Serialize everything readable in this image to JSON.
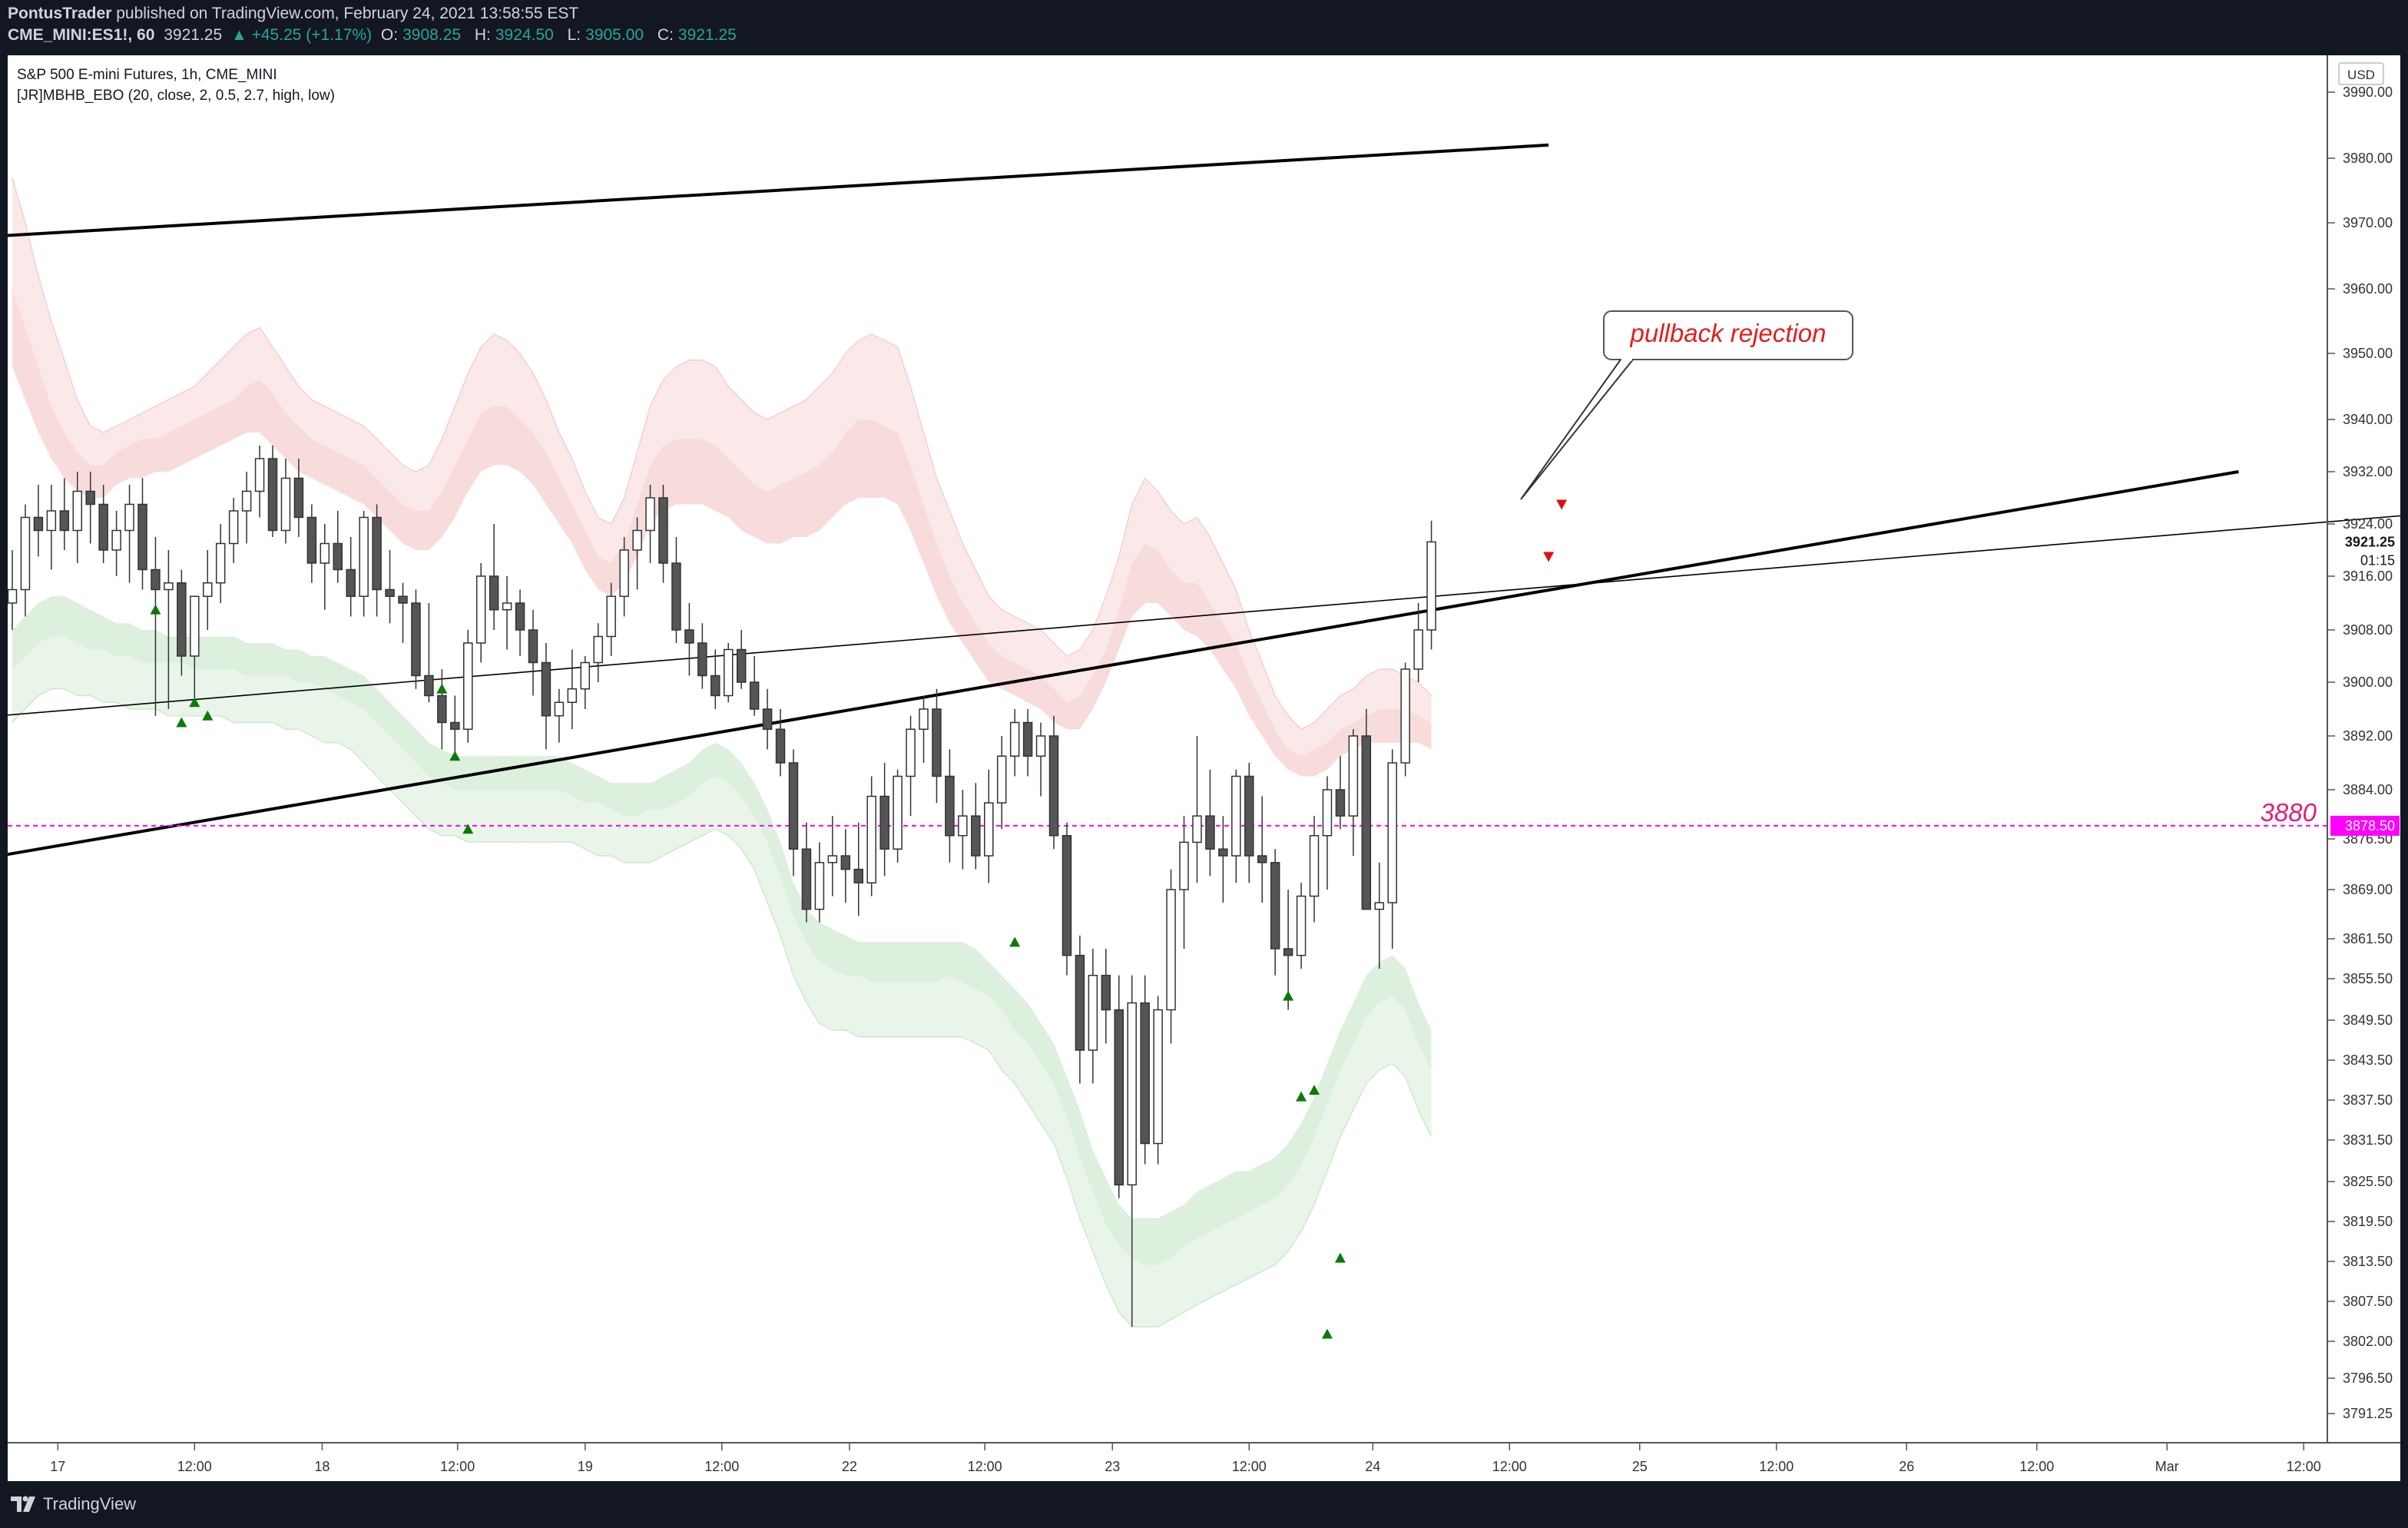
{
  "header": {
    "publisher": "PontusTrader",
    "published_text": "published on TradingView.com, February 24, 2021 13:58:55 EST",
    "symbol": "CME_MINI:ES1!, 60",
    "last": "3921.25",
    "change": "▲ +45.25 (+1.17%)",
    "o_label": "O:",
    "o_value": "3908.25",
    "h_label": "H:",
    "h_value": "3924.50",
    "l_label": "L:",
    "l_value": "3905.00",
    "c_label": "C:",
    "c_value": "3921.25"
  },
  "legend": {
    "title": "S&P 500 E-mini Futures, 1h, CME_MINI",
    "indicator": "[JR]MBHB_EBO (20, close, 2, 0.5, 2.7, high, low)"
  },
  "footer": {
    "brand": "TradingView"
  },
  "colors": {
    "up_body": "#ffffff",
    "down_body": "#555555",
    "candle_border": "#333333",
    "upper_band": "#f6cfcf",
    "lower_band": "#cfe8cf",
    "signal_up": "#0a7a0a",
    "signal_down": "#e01010",
    "hline": "#ff00ff",
    "annotation": "#e02020"
  },
  "chart_data": {
    "type": "candlestick",
    "currency": "USD",
    "y_tick_labels": [
      "3990.00",
      "3980.00",
      "3970.00",
      "3960.00",
      "3950.00",
      "3940.00",
      "3932.00",
      "3924.00",
      "3916.00",
      "3908.00",
      "3900.00",
      "3892.00",
      "3884.00",
      "3876.50",
      "3869.00",
      "3861.50",
      "3855.50",
      "3849.50",
      "3843.50",
      "3837.50",
      "3831.50",
      "3825.50",
      "3819.50",
      "3813.50",
      "3807.50",
      "3802.00",
      "3796.50",
      "3791.25"
    ],
    "x_tick_labels": [
      "17",
      "12:00",
      "18",
      "12:00",
      "19",
      "12:00",
      "22",
      "12:00",
      "23",
      "12:00",
      "24",
      "12:00",
      "25",
      "12:00",
      "26",
      "12:00",
      "Mar",
      "12:00"
    ],
    "price_label": "3921.25",
    "countdown_label": "01:15",
    "hline_label": "3878.50",
    "hline_value": 3878.5,
    "level_text": "3880",
    "annotation_text": "pullback rejection",
    "candles": [
      [
        3912,
        3920,
        3908,
        3914
      ],
      [
        3914,
        3927,
        3910,
        3925
      ],
      [
        3925,
        3930,
        3919,
        3923
      ],
      [
        3923,
        3930,
        3917,
        3926
      ],
      [
        3926,
        3931,
        3920,
        3923
      ],
      [
        3923,
        3932,
        3918,
        3929
      ],
      [
        3929,
        3932,
        3921,
        3927
      ],
      [
        3927,
        3930,
        3918,
        3920
      ],
      [
        3920,
        3926,
        3916,
        3923
      ],
      [
        3923,
        3930,
        3915,
        3927
      ],
      [
        3927,
        3931,
        3914,
        3917
      ],
      [
        3917,
        3922,
        3895,
        3914
      ],
      [
        3914,
        3920,
        3896,
        3915
      ],
      [
        3915,
        3917,
        3901,
        3904
      ],
      [
        3904,
        3913,
        3897,
        3913
      ],
      [
        3913,
        3920,
        3908,
        3915
      ],
      [
        3915,
        3924,
        3912,
        3921
      ],
      [
        3921,
        3928,
        3918,
        3926
      ],
      [
        3926,
        3932,
        3921,
        3929
      ],
      [
        3929,
        3936,
        3925,
        3934
      ],
      [
        3934,
        3936,
        3922,
        3923
      ],
      [
        3923,
        3934,
        3921,
        3931
      ],
      [
        3931,
        3934,
        3922,
        3925
      ],
      [
        3925,
        3927,
        3915,
        3918
      ],
      [
        3918,
        3924,
        3911,
        3921
      ],
      [
        3921,
        3926,
        3915,
        3917
      ],
      [
        3917,
        3922,
        3910,
        3913
      ],
      [
        3913,
        3926,
        3910,
        3925
      ],
      [
        3925,
        3927,
        3910,
        3914
      ],
      [
        3914,
        3920,
        3909,
        3913
      ],
      [
        3913,
        3915,
        3906,
        3912
      ],
      [
        3912,
        3914,
        3899,
        3901
      ],
      [
        3901,
        3912,
        3897,
        3898
      ],
      [
        3898,
        3902,
        3890,
        3894
      ],
      [
        3894,
        3898,
        3889,
        3893
      ],
      [
        3893,
        3908,
        3891,
        3906
      ],
      [
        3906,
        3918,
        3903,
        3916
      ],
      [
        3916,
        3924,
        3908,
        3911
      ],
      [
        3911,
        3916,
        3905,
        3912
      ],
      [
        3912,
        3914,
        3904,
        3908
      ],
      [
        3908,
        3911,
        3898,
        3903
      ],
      [
        3903,
        3906,
        3890,
        3895
      ],
      [
        3895,
        3899,
        3891,
        3897
      ],
      [
        3897,
        3905,
        3893,
        3899
      ],
      [
        3899,
        3904,
        3896,
        3903
      ],
      [
        3903,
        3909,
        3900,
        3907
      ],
      [
        3907,
        3915,
        3904,
        3913
      ],
      [
        3913,
        3922,
        3910,
        3920
      ],
      [
        3920,
        3925,
        3914,
        3923
      ],
      [
        3923,
        3930,
        3918,
        3928
      ],
      [
        3928,
        3930,
        3915,
        3918
      ],
      [
        3918,
        3922,
        3906,
        3908
      ],
      [
        3908,
        3912,
        3901,
        3906
      ],
      [
        3906,
        3909,
        3899,
        3901
      ],
      [
        3901,
        3905,
        3896,
        3898
      ],
      [
        3898,
        3906,
        3897,
        3905
      ],
      [
        3905,
        3908,
        3899,
        3900
      ],
      [
        3900,
        3904,
        3895,
        3896
      ],
      [
        3896,
        3899,
        3890,
        3893
      ],
      [
        3893,
        3896,
        3886,
        3888
      ],
      [
        3888,
        3890,
        3871,
        3875
      ],
      [
        3875,
        3879,
        3864,
        3866
      ],
      [
        3866,
        3876,
        3864,
        3873
      ],
      [
        3873,
        3880,
        3868,
        3874
      ],
      [
        3874,
        3878,
        3867,
        3872
      ],
      [
        3872,
        3879,
        3865,
        3870
      ],
      [
        3870,
        3886,
        3868,
        3883
      ],
      [
        3883,
        3888,
        3871,
        3875
      ],
      [
        3875,
        3887,
        3873,
        3886
      ],
      [
        3886,
        3895,
        3880,
        3893
      ],
      [
        3893,
        3898,
        3888,
        3896
      ],
      [
        3896,
        3899,
        3882,
        3886
      ],
      [
        3886,
        3890,
        3873,
        3877
      ],
      [
        3877,
        3884,
        3872,
        3880
      ],
      [
        3880,
        3885,
        3872,
        3874
      ],
      [
        3874,
        3887,
        3870,
        3882
      ],
      [
        3882,
        3892,
        3878,
        3889
      ],
      [
        3889,
        3896,
        3886,
        3894
      ],
      [
        3894,
        3896,
        3886,
        3889
      ],
      [
        3889,
        3894,
        3883,
        3892
      ],
      [
        3892,
        3895,
        3875,
        3877
      ],
      [
        3877,
        3879,
        3856,
        3859
      ],
      [
        3859,
        3862,
        3840,
        3845
      ],
      [
        3845,
        3860,
        3840,
        3856
      ],
      [
        3856,
        3860,
        3846,
        3851
      ],
      [
        3851,
        3856,
        3823,
        3825
      ],
      [
        3825,
        3856,
        3804,
        3852
      ],
      [
        3852,
        3856,
        3828,
        3831
      ],
      [
        3831,
        3853,
        3828,
        3851
      ],
      [
        3851,
        3872,
        3846,
        3869
      ],
      [
        3869,
        3880,
        3860,
        3876
      ],
      [
        3876,
        3892,
        3870,
        3880
      ],
      [
        3880,
        3887,
        3871,
        3875
      ],
      [
        3875,
        3880,
        3867,
        3874
      ],
      [
        3874,
        3887,
        3870,
        3886
      ],
      [
        3886,
        3888,
        3870,
        3874
      ],
      [
        3874,
        3883,
        3867,
        3873
      ],
      [
        3873,
        3875,
        3856,
        3860
      ],
      [
        3860,
        3869,
        3851,
        3859
      ],
      [
        3859,
        3870,
        3857,
        3868
      ],
      [
        3868,
        3880,
        3864,
        3877
      ],
      [
        3877,
        3886,
        3869,
        3884
      ],
      [
        3884,
        3889,
        3878,
        3880
      ],
      [
        3880,
        3893,
        3874,
        3892
      ],
      [
        3892,
        3896,
        3866,
        3866
      ],
      [
        3866,
        3873,
        3857,
        3867
      ],
      [
        3867,
        3890,
        3860,
        3888
      ],
      [
        3888,
        3903,
        3886,
        3902
      ],
      [
        3902,
        3912,
        3900,
        3908
      ],
      [
        3908,
        3924.5,
        3905,
        3921.25
      ]
    ],
    "upper_band_outer_top": [
      3977,
      3970,
      3962,
      3955,
      3949,
      3943,
      3939,
      3938,
      3939,
      3940,
      3941,
      3942,
      3943,
      3944,
      3945,
      3947,
      3949,
      3951,
      3953,
      3954,
      3951,
      3948,
      3945,
      3943,
      3942,
      3941,
      3940,
      3939,
      3937,
      3935,
      3933,
      3932,
      3933,
      3937,
      3942,
      3947,
      3951,
      3953,
      3952,
      3950,
      3947,
      3943,
      3938,
      3934,
      3929,
      3925,
      3924,
      3928,
      3935,
      3942,
      3946,
      3948,
      3949,
      3949,
      3948,
      3945,
      3943,
      3941,
      3940,
      3941,
      3942,
      3943,
      3945,
      3947,
      3950,
      3952,
      3953,
      3952,
      3951,
      3945,
      3938,
      3931,
      3926,
      3921,
      3917,
      3913,
      3911,
      3910,
      3909,
      3908,
      3906,
      3904,
      3905,
      3908,
      3913,
      3919,
      3927,
      3931,
      3929,
      3926,
      3924,
      3925,
      3922,
      3918,
      3914,
      3908,
      3903,
      3898,
      3895,
      3893,
      3894,
      3896,
      3898,
      3899,
      3901,
      3902,
      3902,
      3901,
      3900,
      3898
    ],
    "upper_band_inner": [
      3960,
      3954,
      3948,
      3942,
      3938,
      3935,
      3933,
      3933,
      3935,
      3936,
      3937,
      3937,
      3938,
      3939,
      3940,
      3941,
      3942,
      3943,
      3945,
      3946,
      3944,
      3941,
      3939,
      3937,
      3936,
      3935,
      3934,
      3933,
      3931,
      3929,
      3927,
      3926,
      3926,
      3929,
      3933,
      3937,
      3941,
      3942,
      3942,
      3940,
      3938,
      3935,
      3931,
      3927,
      3923,
      3919,
      3918,
      3921,
      3927,
      3933,
      3936,
      3937,
      3937,
      3937,
      3936,
      3934,
      3932,
      3930,
      3929,
      3930,
      3931,
      3932,
      3933,
      3935,
      3938,
      3940,
      3940,
      3939,
      3938,
      3933,
      3927,
      3921,
      3916,
      3912,
      3909,
      3906,
      3904,
      3903,
      3902,
      3901,
      3899,
      3897,
      3898,
      3901,
      3905,
      3911,
      3918,
      3921,
      3920,
      3917,
      3915,
      3915,
      3912,
      3909,
      3906,
      3901,
      3897,
      3893,
      3890,
      3889,
      3890,
      3891,
      3893,
      3894,
      3895,
      3896,
      3896,
      3896,
      3895,
      3894
    ],
    "upper_band_outer_bottom": [
      3948,
      3943,
      3938,
      3934,
      3931,
      3929,
      3928,
      3928,
      3930,
      3931,
      3931,
      3932,
      3932,
      3933,
      3934,
      3935,
      3936,
      3937,
      3938,
      3938,
      3936,
      3934,
      3932,
      3931,
      3930,
      3929,
      3928,
      3927,
      3925,
      3923,
      3921,
      3920,
      3920,
      3922,
      3925,
      3929,
      3932,
      3933,
      3933,
      3932,
      3930,
      3927,
      3924,
      3921,
      3917,
      3914,
      3913,
      3915,
      3919,
      3924,
      3926,
      3927,
      3927,
      3927,
      3926,
      3925,
      3923,
      3922,
      3921,
      3921,
      3922,
      3922,
      3923,
      3925,
      3927,
      3928,
      3928,
      3928,
      3927,
      3923,
      3918,
      3913,
      3909,
      3906,
      3903,
      3900,
      3899,
      3898,
      3897,
      3896,
      3894,
      3893,
      3893,
      3896,
      3900,
      3905,
      3910,
      3912,
      3912,
      3910,
      3908,
      3907,
      3905,
      3902,
      3899,
      3895,
      3892,
      3889,
      3887,
      3886,
      3886,
      3887,
      3889,
      3890,
      3891,
      3891,
      3891,
      3891,
      3891,
      3890
    ],
    "lower_band_outer_top": [
      3908,
      3910,
      3912,
      3913,
      3913,
      3912,
      3911,
      3910,
      3909,
      3909,
      3908,
      3908,
      3907,
      3907,
      3907,
      3907,
      3907,
      3907,
      3906,
      3906,
      3906,
      3905,
      3905,
      3904,
      3904,
      3903,
      3902,
      3901,
      3899,
      3897,
      3895,
      3893,
      3891,
      3890,
      3889,
      3889,
      3889,
      3889,
      3889,
      3889,
      3889,
      3889,
      3889,
      3888,
      3887,
      3886,
      3885,
      3885,
      3885,
      3885,
      3886,
      3887,
      3888,
      3890,
      3891,
      3890,
      3888,
      3885,
      3881,
      3876,
      3870,
      3866,
      3864,
      3863,
      3862,
      3861,
      3861,
      3861,
      3861,
      3861,
      3861,
      3861,
      3861,
      3861,
      3860,
      3858,
      3856,
      3854,
      3852,
      3849,
      3846,
      3841,
      3836,
      3830,
      3826,
      3822,
      3820,
      3820,
      3820,
      3821,
      3822,
      3824,
      3825,
      3826,
      3827,
      3827,
      3828,
      3829,
      3831,
      3834,
      3838,
      3843,
      3848,
      3852,
      3856,
      3858,
      3859,
      3857,
      3852,
      3848
    ],
    "lower_band_inner": [
      3902,
      3904,
      3906,
      3907,
      3907,
      3906,
      3905,
      3905,
      3904,
      3904,
      3903,
      3903,
      3903,
      3903,
      3902,
      3902,
      3902,
      3902,
      3901,
      3901,
      3901,
      3901,
      3900,
      3900,
      3899,
      3898,
      3897,
      3896,
      3894,
      3892,
      3890,
      3888,
      3886,
      3885,
      3884,
      3884,
      3884,
      3884,
      3884,
      3884,
      3884,
      3884,
      3884,
      3883,
      3882,
      3882,
      3881,
      3880,
      3880,
      3881,
      3881,
      3882,
      3883,
      3885,
      3886,
      3885,
      3883,
      3880,
      3876,
      3871,
      3865,
      3861,
      3858,
      3857,
      3856,
      3856,
      3855,
      3855,
      3855,
      3855,
      3855,
      3855,
      3856,
      3855,
      3854,
      3853,
      3851,
      3848,
      3846,
      3843,
      3840,
      3835,
      3829,
      3824,
      3819,
      3816,
      3814,
      3813,
      3813,
      3814,
      3816,
      3817,
      3818,
      3819,
      3820,
      3821,
      3822,
      3823,
      3825,
      3828,
      3832,
      3837,
      3842,
      3846,
      3850,
      3852,
      3853,
      3851,
      3846,
      3842
    ],
    "lower_band_outer_bottom": [
      3894,
      3896,
      3898,
      3899,
      3899,
      3898,
      3898,
      3897,
      3897,
      3896,
      3896,
      3896,
      3895,
      3895,
      3895,
      3895,
      3895,
      3894,
      3894,
      3894,
      3894,
      3893,
      3893,
      3892,
      3891,
      3891,
      3890,
      3888,
      3886,
      3884,
      3882,
      3880,
      3878,
      3877,
      3877,
      3876,
      3876,
      3876,
      3876,
      3876,
      3876,
      3876,
      3876,
      3876,
      3875,
      3874,
      3874,
      3873,
      3873,
      3873,
      3874,
      3875,
      3876,
      3877,
      3878,
      3877,
      3875,
      3872,
      3867,
      3862,
      3856,
      3852,
      3849,
      3848,
      3848,
      3847,
      3847,
      3847,
      3847,
      3847,
      3847,
      3847,
      3847,
      3847,
      3846,
      3845,
      3842,
      3840,
      3837,
      3834,
      3831,
      3826,
      3820,
      3815,
      3810,
      3806,
      3804,
      3804,
      3804,
      3805,
      3806,
      3807,
      3808,
      3809,
      3810,
      3811,
      3812,
      3813,
      3815,
      3818,
      3822,
      3827,
      3832,
      3836,
      3840,
      3842,
      3843,
      3841,
      3836,
      3832
    ],
    "up_signals": [
      {
        "i": 11,
        "price": 3911
      },
      {
        "i": 13,
        "price": 3894
      },
      {
        "i": 14,
        "price": 3897
      },
      {
        "i": 15,
        "price": 3895
      },
      {
        "i": 33,
        "price": 3899
      },
      {
        "i": 34,
        "price": 3889
      },
      {
        "i": 35,
        "price": 3878
      },
      {
        "i": 77,
        "price": 3861
      },
      {
        "i": 98,
        "price": 3853
      },
      {
        "i": 99,
        "price": 3838
      },
      {
        "i": 100,
        "price": 3839
      },
      {
        "i": 101,
        "price": 3803
      },
      {
        "i": 102,
        "price": 3814
      }
    ],
    "down_signals": [
      {
        "i": 118,
        "price": 3919
      },
      {
        "i": 119,
        "price": 3927
      }
    ],
    "trendlines": [
      {
        "style": "thick",
        "from": {
          "i": -1,
          "price": 3968
        },
        "to": {
          "i": 118,
          "price": 3998
        }
      },
      {
        "style": "thick",
        "from": {
          "i": -1,
          "price": 3874
        },
        "to": {
          "i": 171,
          "price": 3932
        }
      },
      {
        "style": "thin",
        "from": {
          "i": -1,
          "price": 3895
        },
        "to": {
          "i": 188,
          "price": 3926
        }
      }
    ]
  }
}
